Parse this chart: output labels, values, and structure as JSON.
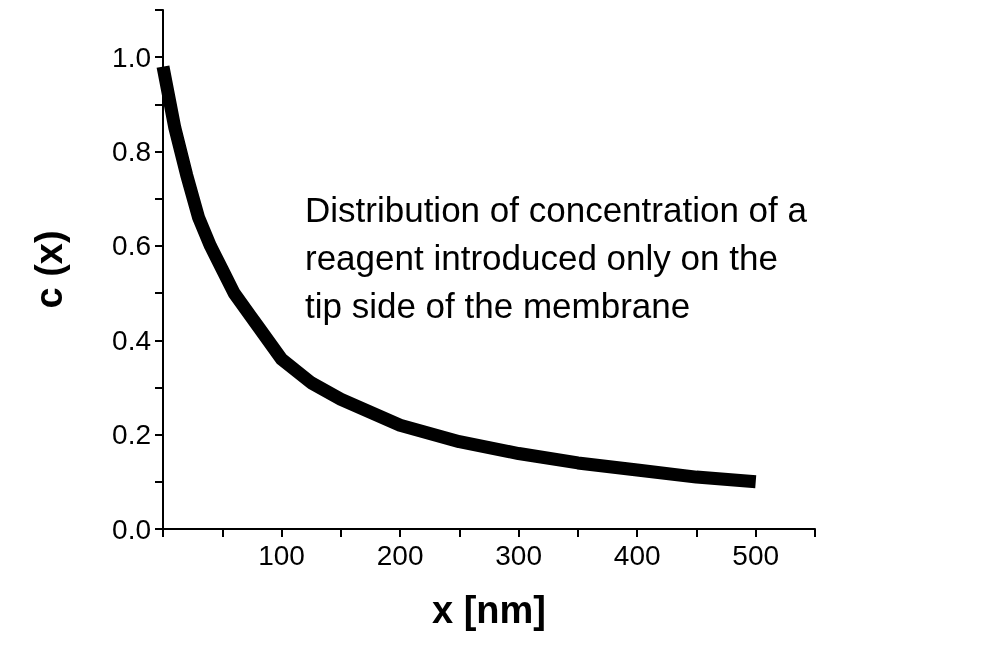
{
  "chart_data": {
    "type": "line",
    "xlabel": "x [nm]",
    "ylabel": "c (x)",
    "annotations": [
      "Distribution of concentration of a\nreagent introduced only on the\ntip side of the membrane"
    ],
    "x": [
      0,
      10,
      20,
      30,
      40,
      50,
      60,
      80,
      100,
      125,
      150,
      200,
      250,
      300,
      350,
      400,
      450,
      500
    ],
    "series": [
      {
        "color": "#000000",
        "values": [
          0.98,
          0.85,
          0.75,
          0.66,
          0.6,
          0.55,
          0.5,
          0.43,
          0.36,
          0.31,
          0.275,
          0.22,
          0.185,
          0.16,
          0.14,
          0.125,
          0.11,
          0.1
        ]
      }
    ],
    "xlim": [
      0,
      550
    ],
    "xticks": [
      {
        "value": 0,
        "label": null
      },
      {
        "value": 50,
        "label": null
      },
      100,
      {
        "value": 150,
        "label": null
      },
      200,
      {
        "value": 250,
        "label": null
      },
      300,
      {
        "value": 350,
        "label": null
      },
      400,
      {
        "value": 450,
        "label": null
      },
      500,
      {
        "value": 550,
        "label": null
      }
    ],
    "ylim": [
      0,
      1.1
    ],
    "yticks": [
      {
        "value": 0,
        "label": "0.0"
      },
      {
        "value": 0.1,
        "label": null
      },
      {
        "value": 0.2,
        "label": "0.2"
      },
      {
        "value": 0.3,
        "label": null
      },
      {
        "value": 0.4,
        "label": "0.4"
      },
      {
        "value": 0.5,
        "label": null
      },
      {
        "value": 0.6,
        "label": "0.6"
      },
      {
        "value": 0.7,
        "label": null
      },
      {
        "value": 0.8,
        "label": "0.8"
      },
      {
        "value": 0.9,
        "label": null
      },
      {
        "value": 1.0,
        "label": "1.0"
      },
      {
        "value": 1.1,
        "label": null
      }
    ],
    "grid": false,
    "marker": "none",
    "line_style": "solid"
  }
}
